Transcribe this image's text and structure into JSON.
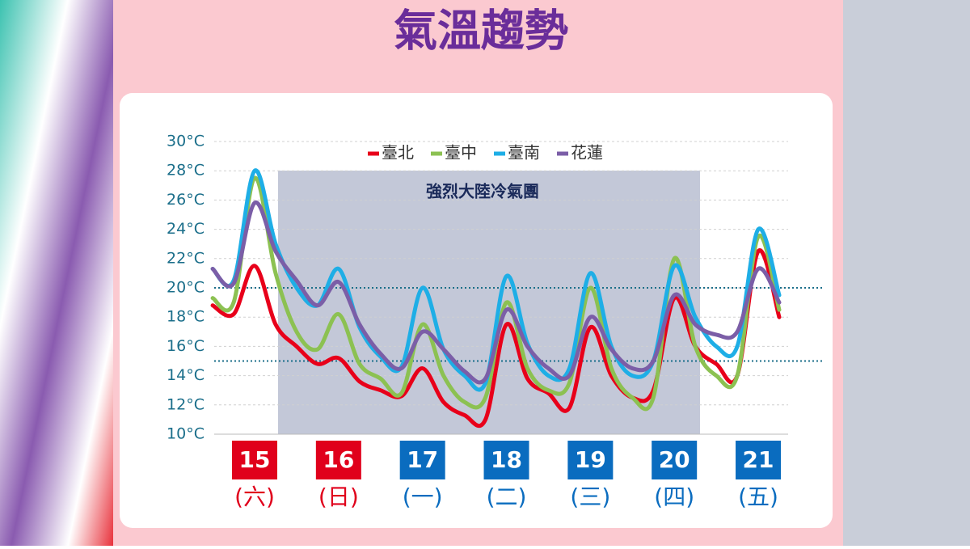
{
  "chart_data": {
    "type": "line",
    "title": "氣溫趨勢",
    "annotation": "強烈大陸冷氣團",
    "categories": [
      null,
      null,
      "15",
      null,
      null,
      null,
      "16",
      null,
      null,
      null,
      "17",
      null,
      null,
      null,
      "18",
      null,
      null,
      null,
      "19",
      null,
      null,
      null,
      "20",
      null,
      null,
      null,
      "21",
      null
    ],
    "weekdays": [
      null,
      null,
      "(六)",
      null,
      null,
      null,
      "(日)",
      null,
      null,
      null,
      "(一)",
      null,
      null,
      null,
      "(二)",
      null,
      null,
      null,
      "(三)",
      null,
      null,
      null,
      "(四)",
      null,
      null,
      null,
      "(五)",
      null
    ],
    "category_colors": [
      null,
      null,
      "#e0001b",
      null,
      null,
      null,
      "#e0001b",
      null,
      null,
      null,
      "#0a6cbf",
      null,
      null,
      null,
      "#0a6cbf",
      null,
      null,
      null,
      "#0a6cbf",
      null,
      null,
      null,
      "#0a6cbf",
      null,
      null,
      null,
      "#0a6cbf",
      null
    ],
    "series": [
      {
        "name": "臺北",
        "color": "#e8001a",
        "values": [
          18.8,
          18.2,
          21.5,
          17.5,
          16,
          14.8,
          15.2,
          13.6,
          13,
          12.6,
          14.5,
          12.2,
          11.3,
          11.0,
          17.5,
          13.8,
          12.8,
          11.8,
          17.3,
          14,
          12.5,
          13,
          19.3,
          16,
          14.8,
          14,
          22.5,
          18
        ]
      },
      {
        "name": "臺中",
        "color": "#8cc152",
        "values": [
          19.3,
          19,
          27.5,
          21,
          17,
          15.8,
          18.2,
          14.8,
          13.8,
          12.8,
          17.5,
          14,
          12.2,
          12.5,
          19,
          14.5,
          13,
          13.5,
          20,
          14.5,
          12.5,
          12.5,
          22,
          16,
          14,
          14,
          23.5,
          18.5
        ]
      },
      {
        "name": "臺南",
        "color": "#1eaee6",
        "values": [
          21.3,
          20.5,
          28,
          23,
          20,
          18.8,
          21.3,
          17.3,
          15.3,
          14.6,
          20,
          15.8,
          14,
          13.5,
          20.8,
          16.2,
          14,
          14.5,
          21,
          16,
          14,
          15,
          21.5,
          18,
          16,
          16,
          24,
          19.5
        ]
      },
      {
        "name": "花蓮",
        "color": "#7b5ea7",
        "values": [
          21.3,
          20.3,
          25.8,
          22.5,
          20.5,
          18.8,
          20.4,
          17.5,
          15.5,
          14.5,
          17,
          15.8,
          14.3,
          13.8,
          18.5,
          16,
          14.5,
          14,
          18,
          15.8,
          14.5,
          15,
          19.5,
          17.5,
          16.8,
          17,
          21.3,
          19
        ]
      }
    ],
    "reference_lines": [
      20,
      15
    ],
    "ylim": [
      10,
      30
    ],
    "yticks": [
      {
        "value": 10,
        "label": "10°C"
      },
      {
        "value": 12,
        "label": "12°C"
      },
      {
        "value": 14,
        "label": "14°C"
      },
      {
        "value": 16,
        "label": "16°C"
      },
      {
        "value": 18,
        "label": "18°C"
      },
      {
        "value": 20,
        "label": "20°C"
      },
      {
        "value": 22,
        "label": "22°C"
      },
      {
        "value": 24,
        "label": "24°C"
      },
      {
        "value": 26,
        "label": "26°C"
      },
      {
        "value": 28,
        "label": "28°C"
      },
      {
        "value": 30,
        "label": "30°C"
      }
    ],
    "grid": true,
    "legend": "top"
  }
}
